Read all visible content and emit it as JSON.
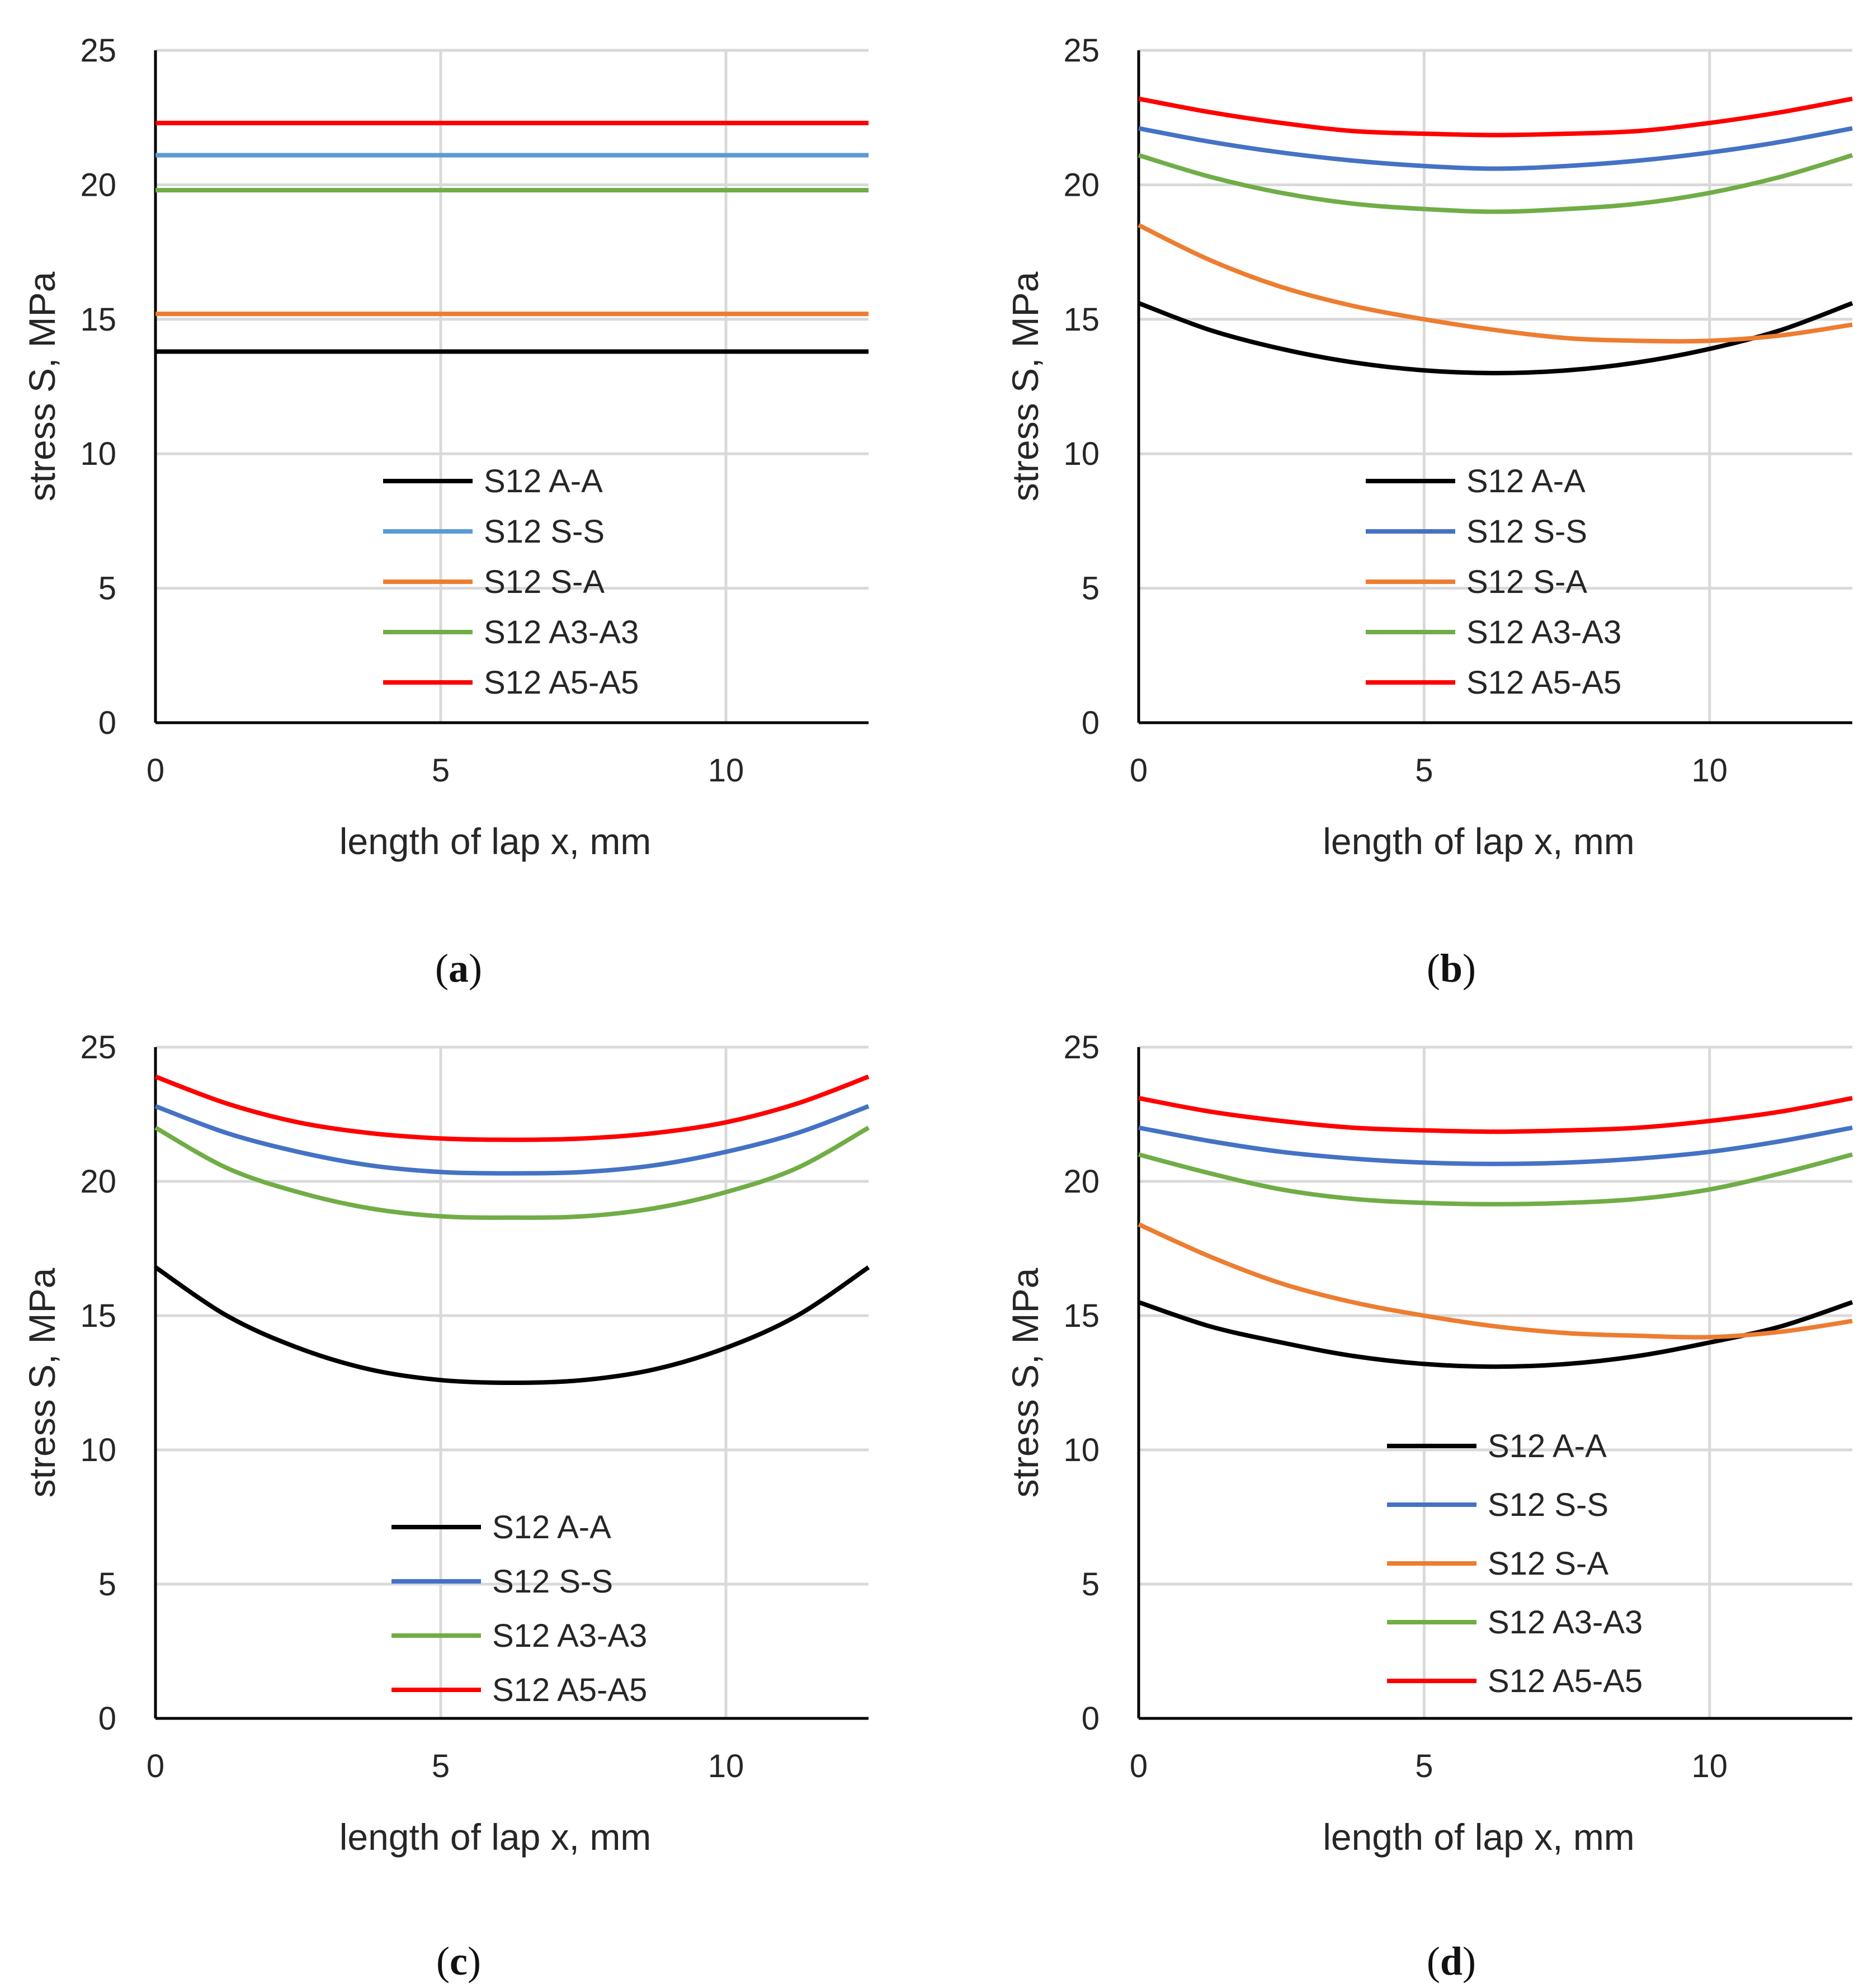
{
  "chart_data": [
    {
      "panel": "a",
      "type": "line",
      "caption": {
        "open": "(",
        "letter": "a",
        "close": ")"
      },
      "xlabel": "length of lap x, mm",
      "ylabel": "stress S, MPa",
      "xlim": [
        0,
        12.5
      ],
      "ylim": [
        0,
        25
      ],
      "xticks": [
        0,
        5,
        10
      ],
      "yticks": [
        0,
        5,
        10,
        15,
        20,
        25
      ],
      "grid": true,
      "legend_position": "center",
      "series": [
        {
          "name": "S12 A-A",
          "color": "#000000",
          "x": [
            0,
            12.5
          ],
          "y": [
            13.8,
            13.8
          ]
        },
        {
          "name": "S12 S-S",
          "color": "#5b9bd5",
          "x": [
            0,
            12.5
          ],
          "y": [
            21.1,
            21.1
          ]
        },
        {
          "name": "S12 S-A",
          "color": "#ed7d31",
          "x": [
            0,
            12.5
          ],
          "y": [
            15.2,
            15.2
          ]
        },
        {
          "name": "S12 A3-A3",
          "color": "#70ad47",
          "x": [
            0,
            12.5
          ],
          "y": [
            19.8,
            19.8
          ]
        },
        {
          "name": "S12 A5-A5",
          "color": "#ff0000",
          "x": [
            0,
            12.5
          ],
          "y": [
            22.3,
            22.3
          ]
        }
      ]
    },
    {
      "panel": "b",
      "type": "line",
      "caption": {
        "open": "(",
        "letter": "b",
        "close": ")"
      },
      "xlabel": "length of lap x, mm",
      "ylabel": "stress S, MPa",
      "xlim": [
        0,
        12.5
      ],
      "ylim": [
        0,
        25
      ],
      "xticks": [
        0,
        5,
        10
      ],
      "yticks": [
        0,
        5,
        10,
        15,
        20,
        25
      ],
      "grid": true,
      "legend_position": "center",
      "series": [
        {
          "name": "S12 A-A",
          "color": "#000000",
          "x": [
            0,
            1.25,
            2.5,
            3.75,
            5,
            6.25,
            7.5,
            8.75,
            10,
            11.25,
            12.5
          ],
          "y": [
            15.6,
            14.6,
            13.9,
            13.4,
            13.1,
            13.0,
            13.1,
            13.4,
            13.9,
            14.6,
            15.6
          ]
        },
        {
          "name": "S12 S-S",
          "color": "#4472c4",
          "x": [
            0,
            1.25,
            2.5,
            3.75,
            5,
            6.25,
            7.5,
            8.75,
            10,
            11.25,
            12.5
          ],
          "y": [
            22.1,
            21.6,
            21.2,
            20.9,
            20.7,
            20.6,
            20.7,
            20.9,
            21.2,
            21.6,
            22.1
          ]
        },
        {
          "name": "S12 S-A",
          "color": "#ed7d31",
          "x": [
            0,
            1.25,
            2.5,
            3.75,
            5,
            6.25,
            7.5,
            8.75,
            10,
            11.25,
            12.5
          ],
          "y": [
            18.5,
            17.2,
            16.2,
            15.5,
            15.0,
            14.6,
            14.3,
            14.2,
            14.2,
            14.4,
            14.8
          ]
        },
        {
          "name": "S12 A3-A3",
          "color": "#70ad47",
          "x": [
            0,
            1.25,
            2.5,
            3.75,
            5,
            6.25,
            7.5,
            8.75,
            10,
            11.25,
            12.5
          ],
          "y": [
            21.1,
            20.3,
            19.7,
            19.3,
            19.1,
            19.0,
            19.1,
            19.3,
            19.7,
            20.3,
            21.1
          ]
        },
        {
          "name": "S12 A5-A5",
          "color": "#ff0000",
          "x": [
            0,
            1.25,
            2.5,
            3.75,
            5,
            6.25,
            7.5,
            8.75,
            10,
            11.25,
            12.5
          ],
          "y": [
            23.2,
            22.7,
            22.3,
            22.0,
            21.9,
            21.85,
            21.9,
            22.0,
            22.3,
            22.7,
            23.2
          ]
        }
      ]
    },
    {
      "panel": "c",
      "type": "line",
      "caption": {
        "open": "(",
        "letter": "c",
        "close": ")"
      },
      "xlabel": "length of lap x, mm",
      "ylabel": "stress S, MPa",
      "xlim": [
        0,
        12.5
      ],
      "ylim": [
        0,
        25
      ],
      "xticks": [
        0,
        5,
        10
      ],
      "yticks": [
        0,
        5,
        10,
        15,
        20,
        25
      ],
      "grid": true,
      "legend_position": "bottom-center",
      "series": [
        {
          "name": "S12 A-A",
          "color": "#000000",
          "x": [
            0,
            1.25,
            2.5,
            3.75,
            5,
            6.25,
            7.5,
            8.75,
            10,
            11.25,
            12.5
          ],
          "y": [
            16.8,
            15.0,
            13.8,
            13.0,
            12.6,
            12.5,
            12.6,
            13.0,
            13.8,
            15.0,
            16.8
          ]
        },
        {
          "name": "S12 S-S",
          "color": "#4472c4",
          "x": [
            0,
            1.25,
            2.5,
            3.75,
            5,
            6.25,
            7.5,
            8.75,
            10,
            11.25,
            12.5
          ],
          "y": [
            22.8,
            21.8,
            21.1,
            20.6,
            20.35,
            20.3,
            20.35,
            20.6,
            21.1,
            21.8,
            22.8
          ]
        },
        {
          "name": "S12 A3-A3",
          "color": "#70ad47",
          "x": [
            0,
            1.25,
            2.5,
            3.75,
            5,
            6.25,
            7.5,
            8.75,
            10,
            11.25,
            12.5
          ],
          "y": [
            22.0,
            20.5,
            19.6,
            19.0,
            18.7,
            18.65,
            18.7,
            19.0,
            19.6,
            20.5,
            22.0
          ]
        },
        {
          "name": "S12 A5-A5",
          "color": "#ff0000",
          "x": [
            0,
            1.25,
            2.5,
            3.75,
            5,
            6.25,
            7.5,
            8.75,
            10,
            11.25,
            12.5
          ],
          "y": [
            23.9,
            22.9,
            22.2,
            21.8,
            21.6,
            21.55,
            21.6,
            21.8,
            22.2,
            22.9,
            23.9
          ]
        }
      ]
    },
    {
      "panel": "d",
      "type": "line",
      "caption": {
        "open": "(",
        "letter": "d",
        "close": ")"
      },
      "xlabel": "length of lap x, mm",
      "ylabel": "stress S, MPa",
      "xlim": [
        0,
        12.5
      ],
      "ylim": [
        0,
        25
      ],
      "xticks": [
        0,
        5,
        10
      ],
      "yticks": [
        0,
        5,
        10,
        15,
        20,
        25
      ],
      "grid": true,
      "legend_position": "bottom-center",
      "series": [
        {
          "name": "S12 A-A",
          "color": "#000000",
          "x": [
            0,
            1.25,
            2.5,
            3.75,
            5,
            6.25,
            7.5,
            8.75,
            10,
            11.25,
            12.5
          ],
          "y": [
            15.5,
            14.6,
            14.0,
            13.5,
            13.2,
            13.1,
            13.2,
            13.5,
            14.0,
            14.6,
            15.5
          ]
        },
        {
          "name": "S12 S-S",
          "color": "#4472c4",
          "x": [
            0,
            1.25,
            2.5,
            3.75,
            5,
            6.25,
            7.5,
            8.75,
            10,
            11.25,
            12.5
          ],
          "y": [
            22.0,
            21.5,
            21.1,
            20.85,
            20.7,
            20.65,
            20.7,
            20.85,
            21.1,
            21.5,
            22.0
          ]
        },
        {
          "name": "S12 S-A",
          "color": "#ed7d31",
          "x": [
            0,
            1.25,
            2.5,
            3.75,
            5,
            6.25,
            7.5,
            8.75,
            10,
            11.25,
            12.5
          ],
          "y": [
            18.4,
            17.2,
            16.2,
            15.5,
            15.0,
            14.6,
            14.35,
            14.25,
            14.2,
            14.4,
            14.8
          ]
        },
        {
          "name": "S12 A3-A3",
          "color": "#70ad47",
          "x": [
            0,
            1.25,
            2.5,
            3.75,
            5,
            6.25,
            7.5,
            8.75,
            10,
            11.25,
            12.5
          ],
          "y": [
            21.0,
            20.3,
            19.7,
            19.35,
            19.2,
            19.15,
            19.2,
            19.35,
            19.7,
            20.3,
            21.0
          ]
        },
        {
          "name": "S12 A5-A5",
          "color": "#ff0000",
          "x": [
            0,
            1.25,
            2.5,
            3.75,
            5,
            6.25,
            7.5,
            8.75,
            10,
            11.25,
            12.5
          ],
          "y": [
            23.1,
            22.6,
            22.25,
            22.0,
            21.9,
            21.85,
            21.9,
            22.0,
            22.25,
            22.6,
            23.1
          ]
        }
      ]
    }
  ]
}
